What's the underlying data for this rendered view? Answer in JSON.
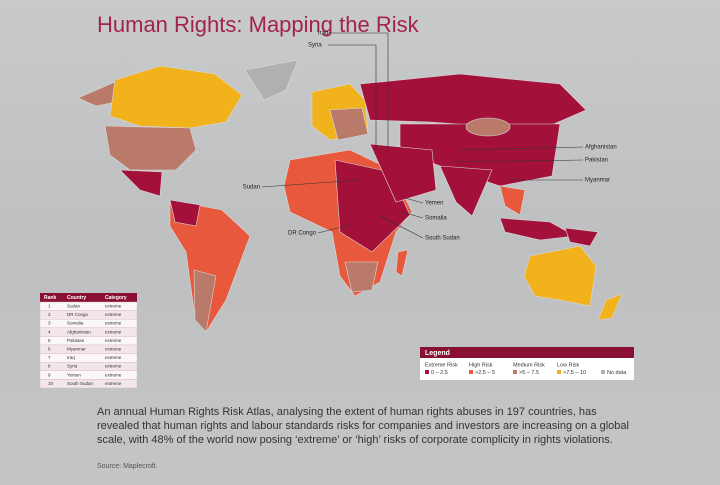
{
  "header": {
    "title": "Human Rights: Mapping the Risk"
  },
  "map_labels": [
    "Iraq",
    "Syria",
    "Afghanistan",
    "Pakistan",
    "Myanmar",
    "Sudan",
    "Yemen",
    "Somalia",
    "DR Congo",
    "South Sudan"
  ],
  "table": {
    "header": [
      "Rank",
      "Country",
      "Category"
    ],
    "rows": [
      [
        1,
        "Sudan",
        "extreme"
      ],
      [
        2,
        "DR Congo",
        "extreme"
      ],
      [
        3,
        "Somalia",
        "extreme"
      ],
      [
        4,
        "Afghanistan",
        "extreme"
      ],
      [
        5,
        "Pakistan",
        "extreme"
      ],
      [
        6,
        "Myanmar",
        "extreme"
      ],
      [
        7,
        "Iraq",
        "extreme"
      ],
      [
        8,
        "Syria",
        "extreme"
      ],
      [
        9,
        "Yemen",
        "extreme"
      ],
      [
        10,
        "South Sudan",
        "extreme"
      ]
    ]
  },
  "legend": {
    "title": "Legend",
    "items": [
      {
        "name": "Extreme Risk",
        "range": "0 – 2.5",
        "color": "#a3113a"
      },
      {
        "name": "High Risk",
        "range": ">2.5 – 5",
        "color": "#e8583c"
      },
      {
        "name": "Medium Risk",
        "range": ">5 – 7.5",
        "color": "#b97a6a"
      },
      {
        "name": "Low Risk",
        "range": ">7.5 – 10",
        "color": "#f2b21b"
      }
    ],
    "no_data": "No data"
  },
  "body": "An annual Human Rights Risk Atlas, analysing the extent of human rights abuses in 197 countries, has revealed that human rights and labour standards risks for companies and investors are increasing on a global scale, with 48% of the world now posing ‘extreme’ or ‘high’ risks of corporate complicity in rights violations.",
  "source": "Source: Maplecroft."
}
